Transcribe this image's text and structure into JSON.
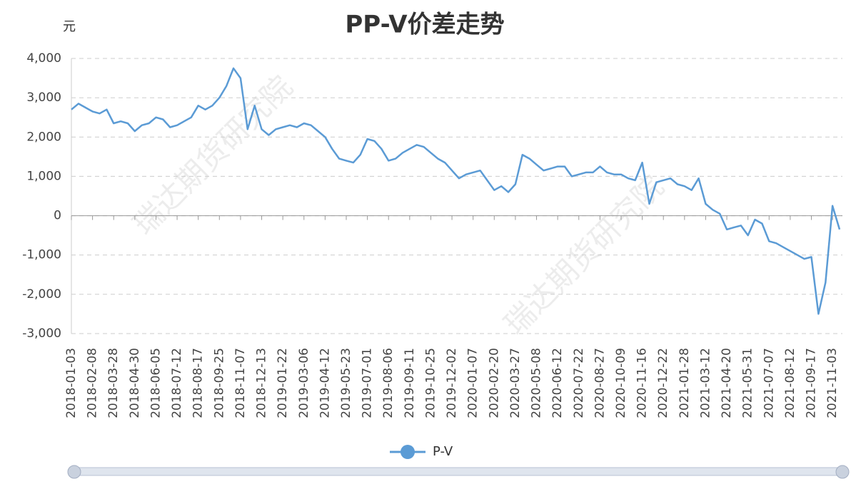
{
  "chart_data": {
    "type": "line",
    "title": "PP-V价差走势",
    "y_unit": "元",
    "watermark": "瑞达期货研究院",
    "categories": [
      "2018-01-03",
      null,
      null,
      "2018-02-08",
      null,
      null,
      "2018-03-28",
      null,
      null,
      "2018-04-30",
      null,
      null,
      "2018-06-05",
      null,
      null,
      "2018-07-12",
      null,
      null,
      "2018-08-17",
      null,
      null,
      "2018-09-25",
      null,
      null,
      "2018-11-07",
      null,
      null,
      "2018-12-13",
      null,
      null,
      "2019-01-22",
      null,
      null,
      "2019-03-06",
      null,
      null,
      "2019-04-12",
      null,
      null,
      "2019-05-23",
      null,
      null,
      "2019-07-01",
      null,
      null,
      "2019-08-06",
      null,
      null,
      "2019-09-11",
      null,
      null,
      "2019-10-25",
      null,
      null,
      "2019-12-02",
      null,
      null,
      "2020-01-07",
      null,
      null,
      "2020-02-20",
      null,
      null,
      "2020-03-27",
      null,
      null,
      "2020-05-08",
      null,
      null,
      "2020-06-12",
      null,
      null,
      "2020-07-22",
      null,
      null,
      "2020-08-27",
      null,
      null,
      "2020-10-09",
      null,
      null,
      "2020-11-16",
      null,
      null,
      "2020-12-22",
      null,
      null,
      "2021-01-28",
      null,
      null,
      "2021-03-12",
      null,
      null,
      "2021-04-20",
      null,
      null,
      "2021-05-31",
      null,
      null,
      "2021-07-07",
      null,
      null,
      "2021-08-12",
      null,
      null,
      "2021-09-17",
      null,
      null,
      "2021-11-03",
      null
    ],
    "series": [
      {
        "name": "P-V",
        "color": "#5b9bd5",
        "values": [
          2700,
          2850,
          2750,
          2650,
          2600,
          2700,
          2350,
          2400,
          2350,
          2150,
          2300,
          2350,
          2500,
          2450,
          2250,
          2300,
          2400,
          2500,
          2800,
          2700,
          2800,
          3000,
          3300,
          3750,
          3500,
          2200,
          2800,
          2200,
          2050,
          2200,
          2250,
          2300,
          2250,
          2350,
          2300,
          2150,
          2000,
          1700,
          1450,
          1400,
          1350,
          1550,
          1950,
          1900,
          1700,
          1400,
          1450,
          1600,
          1700,
          1800,
          1750,
          1600,
          1450,
          1350,
          1150,
          950,
          1050,
          1100,
          1150,
          900,
          650,
          750,
          600,
          800,
          1550,
          1450,
          1300,
          1150,
          1200,
          1250,
          1250,
          1000,
          1050,
          1100,
          1100,
          1250,
          1100,
          1050,
          1050,
          950,
          900,
          1350,
          300,
          850,
          900,
          950,
          800,
          750,
          650,
          950,
          300,
          150,
          50,
          -350,
          -300,
          -250,
          -500,
          -100,
          -200,
          -650,
          -700,
          -800,
          -900,
          -1000,
          -1100,
          -1050,
          -2500,
          -1700,
          250,
          -350
        ]
      }
    ],
    "ylim": [
      -3000,
      4000
    ],
    "yticks": [
      {
        "value": -3000,
        "label": "-3,000"
      },
      {
        "value": -2000,
        "label": "-2,000"
      },
      {
        "value": -1000,
        "label": "-1,000"
      },
      0,
      {
        "value": 1000,
        "label": "1,000"
      },
      {
        "value": 2000,
        "label": "2,000"
      },
      {
        "value": 3000,
        "label": "3,000"
      },
      {
        "value": 4000,
        "label": "4,000"
      }
    ],
    "grid": true
  }
}
